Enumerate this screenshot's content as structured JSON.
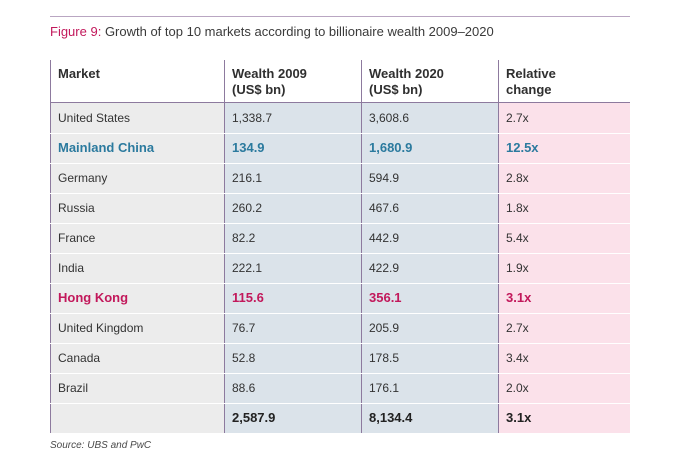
{
  "figure": {
    "label": "Figure 9:",
    "title": "Growth of top 10 markets according to billionaire wealth 2009–2020"
  },
  "table": {
    "headers": {
      "market": "Market",
      "wealth2009": [
        "Wealth 2009",
        "(US$ bn)"
      ],
      "wealth2020": [
        "Wealth 2020",
        "(US$ bn)"
      ],
      "relative": [
        "Relative",
        "change"
      ]
    },
    "rows": [
      {
        "market": "United States",
        "w2009": "1,338.7",
        "w2020": "3,608.6",
        "rel": "2.7x",
        "highlight": ""
      },
      {
        "market": "Mainland China",
        "w2009": "134.9",
        "w2020": "1,680.9",
        "rel": "12.5x",
        "highlight": "blue"
      },
      {
        "market": "Germany",
        "w2009": "216.1",
        "w2020": "594.9",
        "rel": "2.8x",
        "highlight": ""
      },
      {
        "market": "Russia",
        "w2009": "260.2",
        "w2020": "467.6",
        "rel": "1.8x",
        "highlight": ""
      },
      {
        "market": "France",
        "w2009": "82.2",
        "w2020": "442.9",
        "rel": "5.4x",
        "highlight": ""
      },
      {
        "market": "India",
        "w2009": "222.1",
        "w2020": "422.9",
        "rel": "1.9x",
        "highlight": ""
      },
      {
        "market": "Hong Kong",
        "w2009": "115.6",
        "w2020": "356.1",
        "rel": "3.1x",
        "highlight": "pink"
      },
      {
        "market": "United Kingdom",
        "w2009": "76.7",
        "w2020": "205.9",
        "rel": "2.7x",
        "highlight": ""
      },
      {
        "market": "Canada",
        "w2009": "52.8",
        "w2020": "178.5",
        "rel": "3.4x",
        "highlight": ""
      },
      {
        "market": "Brazil",
        "w2009": "88.6",
        "w2020": "176.1",
        "rel": "2.0x",
        "highlight": ""
      }
    ],
    "totals": {
      "market": "",
      "w2009": "2,587.9",
      "w2020": "8,134.4",
      "rel": "3.1x"
    }
  },
  "source": "Source: UBS and PwC",
  "colors": {
    "accent_pink": "#c2185b",
    "accent_blue": "#2b7a9e",
    "market_col_bg": "#ececec",
    "wealth_col_bg": "#dbe3ea",
    "relative_col_bg": "#fbe1ea",
    "rule": "#8d7a9e"
  }
}
